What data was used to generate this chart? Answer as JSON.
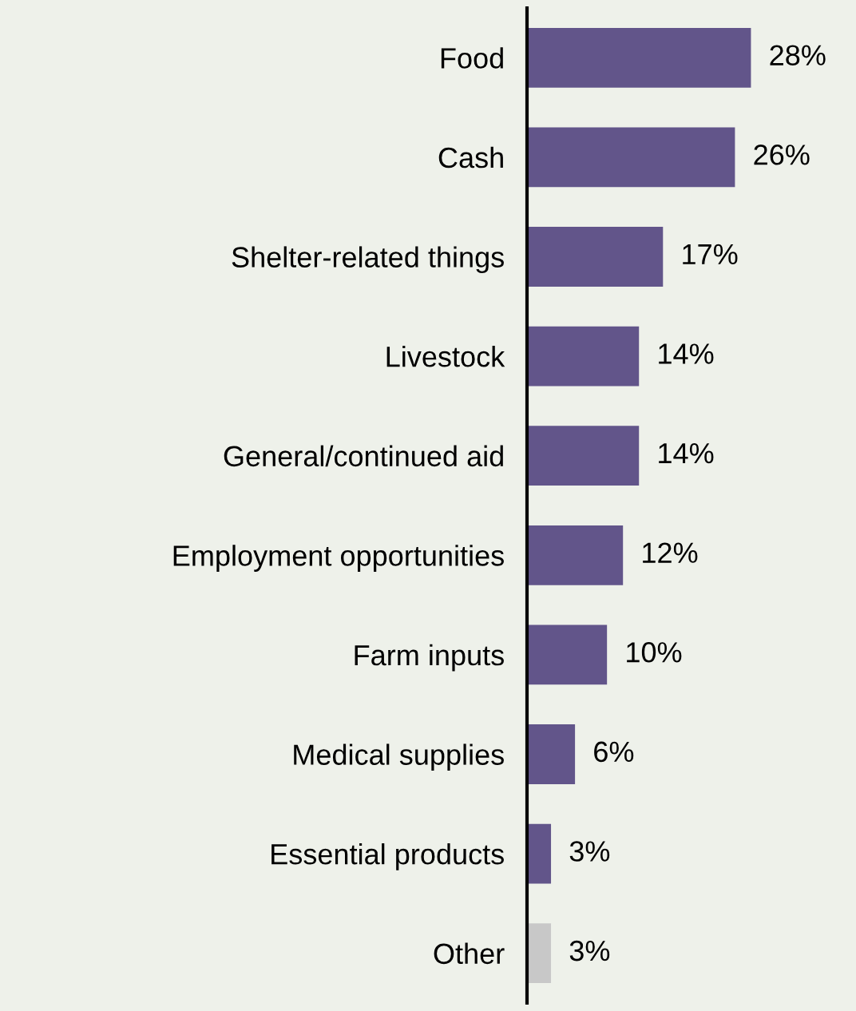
{
  "chart_data": {
    "type": "bar",
    "orientation": "horizontal",
    "categories": [
      "Food",
      "Cash",
      "Shelter-related things",
      "Livestock",
      "General/continued aid",
      "Employment opportunities",
      "Farm inputs",
      "Medical supplies",
      "Essential products",
      "Other"
    ],
    "values": [
      28,
      26,
      17,
      14,
      14,
      12,
      10,
      6,
      3,
      3
    ],
    "colors": [
      "#62558a",
      "#62558a",
      "#62558a",
      "#62558a",
      "#62558a",
      "#62558a",
      "#62558a",
      "#62558a",
      "#62558a",
      "#c8c8c8"
    ],
    "value_labels": [
      "28%",
      "26%",
      "17%",
      "14%",
      "14%",
      "12%",
      "10%",
      "6%",
      "3%",
      "3%"
    ],
    "grid": false,
    "legend": false
  }
}
